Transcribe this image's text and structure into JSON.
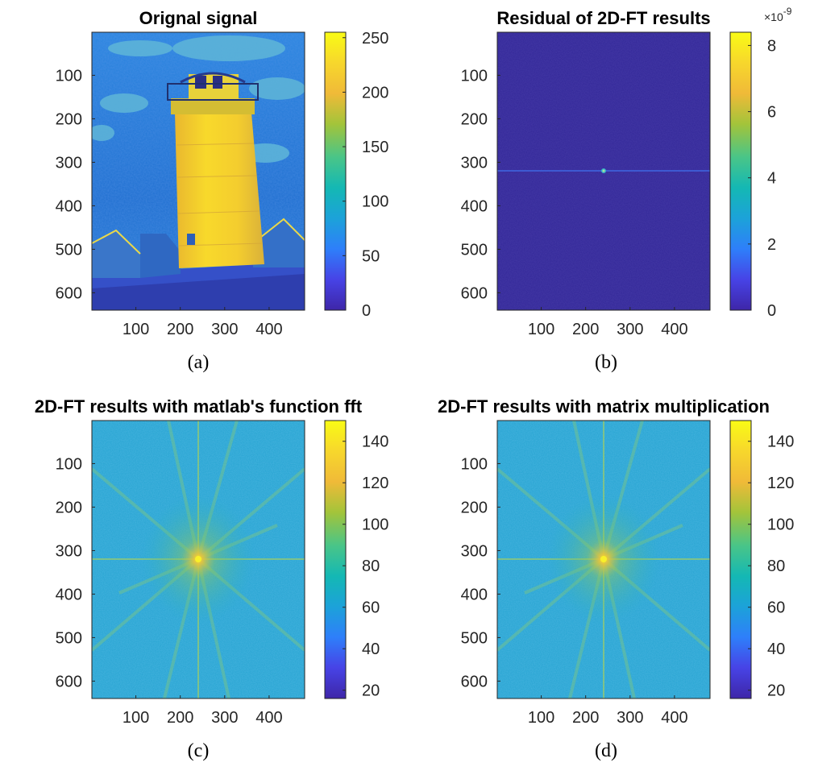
{
  "figure": {
    "colormap": [
      "#3e26a8",
      "#4743e6",
      "#2e7ffa",
      "#1ca2d9",
      "#14b8b4",
      "#49c588",
      "#a3c43a",
      "#f0ba38",
      "#f7d72c",
      "#f9fb15"
    ]
  },
  "chart_data": [
    {
      "type": "heatmap",
      "panel": "a",
      "title": "Orignal signal",
      "caption": "(a)",
      "image_content": "lighthouse photograph",
      "x_ticks": [
        100,
        200,
        300,
        400
      ],
      "y_ticks": [
        100,
        200,
        300,
        400,
        500,
        600
      ],
      "x_range": [
        1,
        480
      ],
      "y_range": [
        1,
        640
      ],
      "colorbar_ticks": [
        "0",
        "50",
        "100",
        "150",
        "200",
        "250"
      ],
      "clim": [
        0,
        255
      ],
      "colorbar_exponent": ""
    },
    {
      "type": "heatmap",
      "panel": "b",
      "title": "Residual of 2D-FT results",
      "caption": "(b)",
      "image_content": "near-zero residual with faint horizontal line and bright center point",
      "x_ticks": [
        100,
        200,
        300,
        400
      ],
      "y_ticks": [
        100,
        200,
        300,
        400,
        500,
        600
      ],
      "x_range": [
        1,
        480
      ],
      "y_range": [
        1,
        640
      ],
      "colorbar_ticks": [
        "0",
        "2",
        "4",
        "6",
        "8"
      ],
      "clim": [
        0,
        8.4
      ],
      "colorbar_exponent": "×10",
      "colorbar_exponent_power": "-9"
    },
    {
      "type": "heatmap",
      "panel": "c",
      "title": "2D-FT results with matlab's function fft",
      "caption": "(c)",
      "image_content": "log-magnitude spectrum with bright center and radial streaks",
      "x_ticks": [
        100,
        200,
        300,
        400
      ],
      "y_ticks": [
        100,
        200,
        300,
        400,
        500,
        600
      ],
      "x_range": [
        1,
        480
      ],
      "y_range": [
        1,
        640
      ],
      "colorbar_ticks": [
        "20",
        "40",
        "60",
        "80",
        "100",
        "120",
        "140"
      ],
      "clim": [
        16,
        150
      ],
      "colorbar_exponent": ""
    },
    {
      "type": "heatmap",
      "panel": "d",
      "title": "2D-FT results with matrix multiplication",
      "caption": "(d)",
      "image_content": "log-magnitude spectrum with bright center and radial streaks",
      "x_ticks": [
        100,
        200,
        300,
        400
      ],
      "y_ticks": [
        100,
        200,
        300,
        400,
        500,
        600
      ],
      "x_range": [
        1,
        480
      ],
      "y_range": [
        1,
        640
      ],
      "colorbar_ticks": [
        "20",
        "40",
        "60",
        "80",
        "100",
        "120",
        "140"
      ],
      "clim": [
        16,
        150
      ],
      "colorbar_exponent": ""
    }
  ]
}
